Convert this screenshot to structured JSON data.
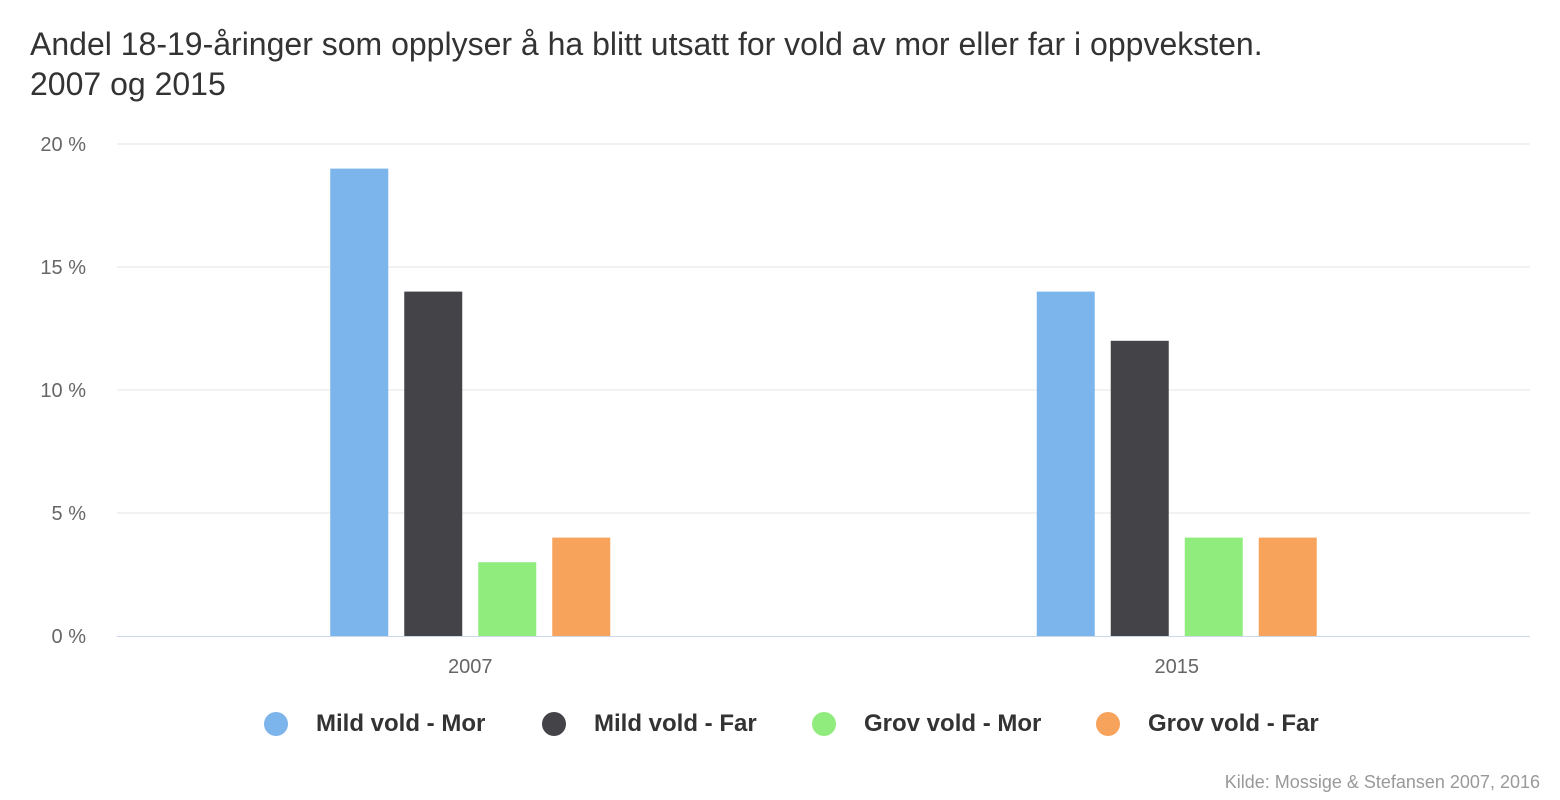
{
  "chart_data": {
    "type": "bar",
    "title": "Andel 18-19-åringer som opplyser å ha blitt utsatt for vold av mor eller far i oppveksten.",
    "subtitle_line": "2007 og 2015",
    "categories": [
      "2007",
      "2015"
    ],
    "series": [
      {
        "name": "Mild vold - Mor",
        "color": "#7cb5ec",
        "values": [
          19,
          14
        ]
      },
      {
        "name": "Mild vold - Far",
        "color": "#434348",
        "values": [
          14,
          12
        ]
      },
      {
        "name": "Grov vold - Mor",
        "color": "#90ed7d",
        "values": [
          3,
          4
        ]
      },
      {
        "name": "Grov vold - Far",
        "color": "#f7a35c",
        "values": [
          4,
          4
        ]
      }
    ],
    "xlabel": "",
    "ylabel": "",
    "ylim": [
      0,
      20
    ],
    "yticks": [
      "0 %",
      "5 %",
      "10 %",
      "15 %",
      "20 %"
    ],
    "ytick_values": [
      0,
      5,
      10,
      15,
      20
    ],
    "grid": true,
    "legend_placement": "bottom-center",
    "credit": "Kilde: Mossige & Stefansen 2007, 2016"
  }
}
